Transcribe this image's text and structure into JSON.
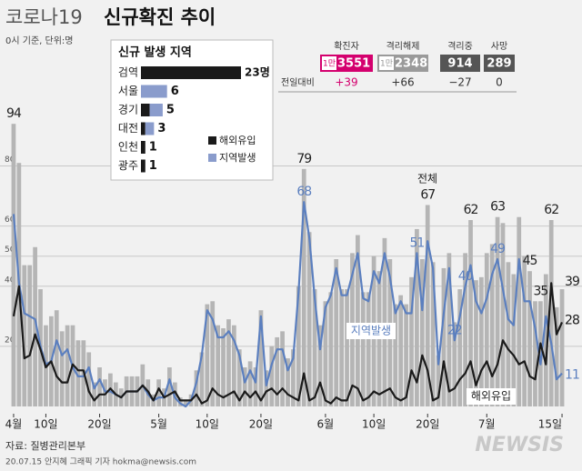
{
  "header": {
    "title_light": "코로나19",
    "title_bold": "신규확진 추이",
    "subtitle": "0시 기준, 단위:명"
  },
  "summary": {
    "change_label": "전일대비",
    "items": [
      {
        "label": "확진자",
        "prefix": "1만",
        "value": "3551",
        "change": "+39"
      },
      {
        "label": "격리해제",
        "prefix": "1만",
        "value": "2348",
        "change": "+66"
      },
      {
        "label": "격리중",
        "value": "914",
        "change": "−27"
      },
      {
        "label": "사망",
        "value": "289",
        "change": "0"
      }
    ]
  },
  "chart_data": [
    {
      "type": "combo",
      "ylim": [
        0,
        98
      ],
      "yticks": [
        20,
        40,
        50,
        60,
        80
      ],
      "grid": true,
      "categories": [
        "4월",
        null,
        null,
        null,
        null,
        null,
        "10일",
        null,
        null,
        null,
        null,
        null,
        null,
        null,
        null,
        null,
        "20일",
        null,
        null,
        null,
        null,
        null,
        null,
        null,
        null,
        null,
        null,
        "5월",
        null,
        null,
        null,
        null,
        null,
        null,
        null,
        null,
        "10일",
        null,
        null,
        null,
        null,
        null,
        null,
        null,
        null,
        null,
        "20일",
        null,
        null,
        null,
        null,
        null,
        null,
        null,
        null,
        null,
        null,
        null,
        "6월",
        null,
        null,
        null,
        null,
        null,
        null,
        null,
        null,
        "10일",
        null,
        null,
        null,
        null,
        null,
        null,
        null,
        null,
        null,
        "20일",
        null,
        null,
        null,
        null,
        null,
        null,
        null,
        null,
        null,
        null,
        "7월",
        null,
        null,
        null,
        null,
        null,
        null,
        null,
        null,
        null,
        null,
        null,
        null,
        null,
        "15일"
      ],
      "series": [
        {
          "name": "전체",
          "type": "bar",
          "color": "#b5b5b5",
          "values": [
            94,
            81,
            47,
            47,
            53,
            39,
            27,
            30,
            32,
            25,
            27,
            27,
            22,
            22,
            18,
            8,
            13,
            9,
            11,
            8,
            6,
            10,
            10,
            10,
            14,
            9,
            4,
            9,
            6,
            13,
            8,
            3,
            2,
            4,
            12,
            18,
            34,
            35,
            27,
            26,
            29,
            27,
            19,
            13,
            15,
            13,
            32,
            12,
            20,
            23,
            25,
            16,
            19,
            40,
            79,
            58,
            39,
            27,
            35,
            38,
            49,
            39,
            39,
            51,
            57,
            38,
            38,
            50,
            45,
            56,
            49,
            34,
            37,
            34,
            43,
            59,
            49,
            67,
            48,
            17,
            46,
            51,
            28,
            39,
            51,
            62,
            42,
            43,
            51,
            54,
            63,
            61,
            48,
            44,
            63,
            50,
            45,
            35,
            35,
            44,
            62,
            33,
            39
          ],
          "value_labels": [
            "94",
            null,
            null,
            null,
            null,
            null,
            null,
            null,
            null,
            null,
            null,
            null,
            null,
            null,
            null,
            null,
            null,
            null,
            null,
            null,
            null,
            null,
            null,
            null,
            null,
            null,
            null,
            null,
            null,
            null,
            null,
            null,
            null,
            null,
            null,
            null,
            null,
            null,
            null,
            null,
            null,
            null,
            null,
            null,
            null,
            null,
            null,
            null,
            null,
            null,
            null,
            null,
            null,
            null,
            "79",
            null,
            null,
            null,
            null,
            null,
            null,
            null,
            null,
            null,
            null,
            null,
            null,
            null,
            null,
            null,
            null,
            null,
            null,
            null,
            null,
            null,
            null,
            "67",
            null,
            null,
            null,
            null,
            null,
            null,
            null,
            "62",
            null,
            null,
            null,
            null,
            "63",
            null,
            null,
            null,
            null,
            null,
            "45",
            null,
            "35",
            null,
            "62",
            null,
            "39"
          ]
        },
        {
          "name": "지역발생",
          "type": "line",
          "color": "#5b7fbf",
          "values": [
            64,
            41,
            31,
            30,
            29,
            20,
            14,
            15,
            22,
            17,
            19,
            13,
            10,
            10,
            13,
            6,
            9,
            5,
            5,
            4,
            3,
            5,
            5,
            5,
            7,
            4,
            2,
            3,
            3,
            9,
            3,
            1,
            0,
            2,
            8,
            17,
            32,
            29,
            23,
            23,
            25,
            22,
            17,
            8,
            12,
            8,
            30,
            7,
            14,
            19,
            19,
            12,
            16,
            38,
            68,
            56,
            36,
            19,
            33,
            37,
            46,
            37,
            37,
            44,
            51,
            36,
            35,
            45,
            41,
            51,
            43,
            31,
            35,
            31,
            31,
            51,
            32,
            55,
            46,
            14,
            31,
            46,
            22,
            30,
            40,
            47,
            35,
            31,
            36,
            44,
            49,
            39,
            29,
            27,
            49,
            35,
            35,
            26,
            14,
            30,
            21,
            9,
            11
          ],
          "value_labels": [
            null,
            null,
            null,
            null,
            null,
            null,
            null,
            null,
            null,
            null,
            null,
            null,
            null,
            null,
            null,
            null,
            null,
            null,
            null,
            null,
            null,
            null,
            null,
            null,
            null,
            null,
            null,
            null,
            null,
            null,
            null,
            null,
            null,
            null,
            null,
            null,
            null,
            null,
            null,
            null,
            null,
            null,
            null,
            null,
            null,
            null,
            null,
            null,
            null,
            null,
            null,
            null,
            null,
            null,
            "68",
            null,
            null,
            null,
            null,
            null,
            null,
            null,
            null,
            null,
            null,
            null,
            null,
            null,
            null,
            null,
            null,
            null,
            null,
            null,
            null,
            "51",
            null,
            null,
            null,
            null,
            null,
            null,
            "22",
            null,
            "40",
            null,
            null,
            null,
            null,
            null,
            "49",
            null,
            null,
            null,
            null,
            null,
            null,
            null,
            null,
            null,
            null,
            null,
            "11"
          ]
        },
        {
          "name": "해외유입",
          "type": "line",
          "color": "#1a1a1a",
          "values": [
            30,
            40,
            16,
            17,
            24,
            19,
            13,
            15,
            10,
            8,
            8,
            14,
            12,
            12,
            5,
            2,
            4,
            4,
            6,
            4,
            3,
            5,
            5,
            5,
            7,
            5,
            2,
            6,
            3,
            4,
            5,
            2,
            2,
            2,
            4,
            1,
            2,
            6,
            4,
            3,
            4,
            5,
            2,
            5,
            3,
            5,
            2,
            5,
            6,
            4,
            6,
            4,
            3,
            2,
            11,
            2,
            3,
            8,
            2,
            1,
            3,
            2,
            2,
            7,
            6,
            2,
            3,
            5,
            4,
            5,
            6,
            3,
            2,
            3,
            12,
            8,
            17,
            12,
            2,
            3,
            15,
            5,
            6,
            9,
            11,
            15,
            7,
            12,
            15,
            10,
            14,
            22,
            19,
            17,
            14,
            15,
            10,
            9,
            21,
            14,
            41,
            24,
            28
          ],
          "value_labels": [
            null,
            null,
            null,
            null,
            null,
            null,
            null,
            null,
            null,
            null,
            null,
            null,
            null,
            null,
            null,
            null,
            null,
            null,
            null,
            null,
            null,
            null,
            null,
            null,
            null,
            null,
            null,
            null,
            null,
            null,
            null,
            null,
            null,
            null,
            null,
            null,
            null,
            null,
            null,
            null,
            null,
            null,
            null,
            null,
            null,
            null,
            null,
            null,
            null,
            null,
            null,
            null,
            null,
            null,
            null,
            null,
            null,
            null,
            null,
            null,
            null,
            null,
            null,
            null,
            null,
            null,
            null,
            null,
            null,
            null,
            null,
            null,
            null,
            null,
            null,
            null,
            null,
            null,
            null,
            null,
            null,
            null,
            null,
            null,
            null,
            null,
            null,
            null,
            null,
            null,
            null,
            null,
            null,
            null,
            null,
            null,
            null,
            null,
            null,
            null,
            null,
            null,
            "28"
          ]
        }
      ]
    },
    {
      "type": "stacked-hbar",
      "title": "신규 발생 지역",
      "categories": [
        "검역",
        "서울",
        "경기",
        "대전",
        "인천",
        "광주"
      ],
      "values": [
        23,
        6,
        5,
        3,
        1,
        1
      ],
      "value_labels": [
        "23명",
        "6",
        "5",
        "3",
        "1",
        "1"
      ],
      "xlim": [
        0,
        23
      ],
      "series": [
        {
          "name": "해외유입",
          "color": "#1a1a1a",
          "values": [
            23,
            0,
            2,
            1,
            1,
            1
          ]
        },
        {
          "name": "지역발생",
          "color": "#8a9ccc",
          "values": [
            0,
            6,
            3,
            2,
            0,
            0
          ]
        }
      ]
    }
  ],
  "footer": {
    "source": "자료: 질병관리본부",
    "credit": "20.07.15 안지혜 그래픽 기자 hokma@newsis.com",
    "logo": "NEWSIS"
  }
}
